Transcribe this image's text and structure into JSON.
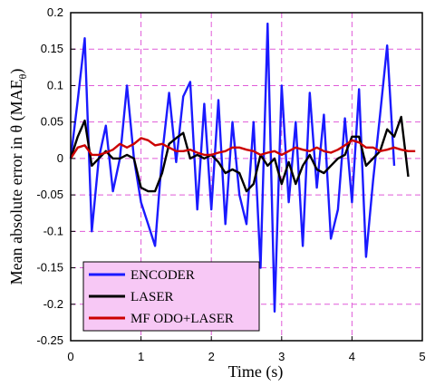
{
  "chart_data": {
    "type": "line",
    "xlabel": "Time (s)",
    "ylabel": "Mean absolute error in θ (MAE",
    "ylabel_sub": "θ",
    "ylabel_close": ")",
    "xlim": [
      0,
      5
    ],
    "ylim": [
      -0.25,
      0.2
    ],
    "xticks": [
      0,
      1,
      2,
      3,
      4,
      5
    ],
    "yticks": [
      -0.25,
      -0.2,
      -0.15,
      -0.1,
      -0.05,
      0,
      0.05,
      0.1,
      0.15,
      0.2
    ],
    "ytick_labels": [
      "-0.25",
      "-0.2",
      "-0.15",
      "-0.1",
      "-0.05",
      "0",
      "0.05",
      "0.1",
      "0.15",
      "0.2"
    ],
    "xtick_labels": [
      "0",
      "1",
      "2",
      "3",
      "4",
      "5"
    ],
    "grid": true,
    "legend_position": "bottom-left",
    "series": [
      {
        "name": "ENCODER",
        "color": "#1a1aff",
        "x": [
          0.0,
          0.1,
          0.2,
          0.3,
          0.4,
          0.5,
          0.6,
          0.7,
          0.8,
          0.9,
          1.0,
          1.1,
          1.2,
          1.3,
          1.4,
          1.5,
          1.6,
          1.7,
          1.8,
          1.9,
          2.0,
          2.1,
          2.2,
          2.3,
          2.4,
          2.5,
          2.6,
          2.7,
          2.8,
          2.9,
          3.0,
          3.1,
          3.2,
          3.3,
          3.4,
          3.5,
          3.6,
          3.7,
          3.8,
          3.9,
          4.0,
          4.1,
          4.2,
          4.3,
          4.4,
          4.5,
          4.6
        ],
        "y": [
          0.0,
          0.08,
          0.165,
          -0.1,
          0.0,
          0.045,
          -0.045,
          0.0,
          0.1,
          0.0,
          -0.06,
          -0.09,
          -0.12,
          0.005,
          0.09,
          -0.005,
          0.085,
          0.105,
          -0.07,
          0.075,
          -0.07,
          0.08,
          -0.09,
          0.05,
          -0.05,
          -0.09,
          0.05,
          -0.15,
          0.185,
          -0.21,
          0.1,
          -0.06,
          0.05,
          -0.12,
          0.09,
          -0.04,
          0.06,
          -0.11,
          -0.07,
          0.055,
          -0.06,
          0.095,
          -0.135,
          -0.03,
          0.06,
          0.155,
          -0.01
        ]
      },
      {
        "name": "LASER",
        "color": "#000000",
        "x": [
          0.0,
          0.1,
          0.2,
          0.3,
          0.4,
          0.5,
          0.6,
          0.7,
          0.8,
          0.9,
          1.0,
          1.1,
          1.2,
          1.3,
          1.4,
          1.5,
          1.6,
          1.7,
          1.8,
          1.9,
          2.0,
          2.1,
          2.2,
          2.3,
          2.4,
          2.5,
          2.6,
          2.7,
          2.8,
          2.9,
          3.0,
          3.1,
          3.2,
          3.3,
          3.4,
          3.5,
          3.6,
          3.7,
          3.8,
          3.9,
          4.0,
          4.1,
          4.2,
          4.3,
          4.4,
          4.5,
          4.6,
          4.7,
          4.8
        ],
        "y": [
          0.0,
          0.03,
          0.052,
          -0.01,
          0.0,
          0.01,
          0.0,
          0.0,
          0.005,
          0.0,
          -0.04,
          -0.045,
          -0.045,
          -0.02,
          0.02,
          0.028,
          0.035,
          0.0,
          0.005,
          0.0,
          0.005,
          -0.005,
          -0.02,
          -0.015,
          -0.02,
          -0.045,
          -0.035,
          0.005,
          -0.01,
          0.0,
          -0.035,
          -0.005,
          -0.035,
          -0.01,
          0.005,
          -0.015,
          -0.02,
          -0.01,
          0.0,
          0.005,
          0.03,
          0.03,
          -0.01,
          0.0,
          0.01,
          0.04,
          0.03,
          0.057,
          -0.025
        ]
      },
      {
        "name": "MF ODO+LASER",
        "color": "#cc0000",
        "x": [
          0.0,
          0.1,
          0.2,
          0.3,
          0.4,
          0.5,
          0.6,
          0.7,
          0.8,
          0.9,
          1.0,
          1.1,
          1.2,
          1.3,
          1.4,
          1.5,
          1.6,
          1.7,
          1.8,
          1.9,
          2.0,
          2.1,
          2.2,
          2.3,
          2.4,
          2.5,
          2.6,
          2.7,
          2.8,
          2.9,
          3.0,
          3.1,
          3.2,
          3.3,
          3.4,
          3.5,
          3.6,
          3.7,
          3.8,
          3.9,
          4.0,
          4.1,
          4.2,
          4.3,
          4.4,
          4.5,
          4.6,
          4.7,
          4.8,
          4.9
        ],
        "y": [
          0.0,
          0.015,
          0.018,
          0.005,
          0.005,
          0.008,
          0.012,
          0.02,
          0.015,
          0.02,
          0.028,
          0.025,
          0.018,
          0.02,
          0.015,
          0.01,
          0.01,
          0.012,
          0.008,
          0.005,
          0.005,
          0.008,
          0.01,
          0.015,
          0.015,
          0.012,
          0.01,
          0.005,
          0.008,
          0.01,
          0.005,
          0.01,
          0.015,
          0.012,
          0.01,
          0.015,
          0.01,
          0.008,
          0.012,
          0.018,
          0.025,
          0.022,
          0.015,
          0.015,
          0.01,
          0.012,
          0.015,
          0.012,
          0.01,
          0.01
        ]
      }
    ],
    "legend_bg": "#f7c8f5"
  }
}
